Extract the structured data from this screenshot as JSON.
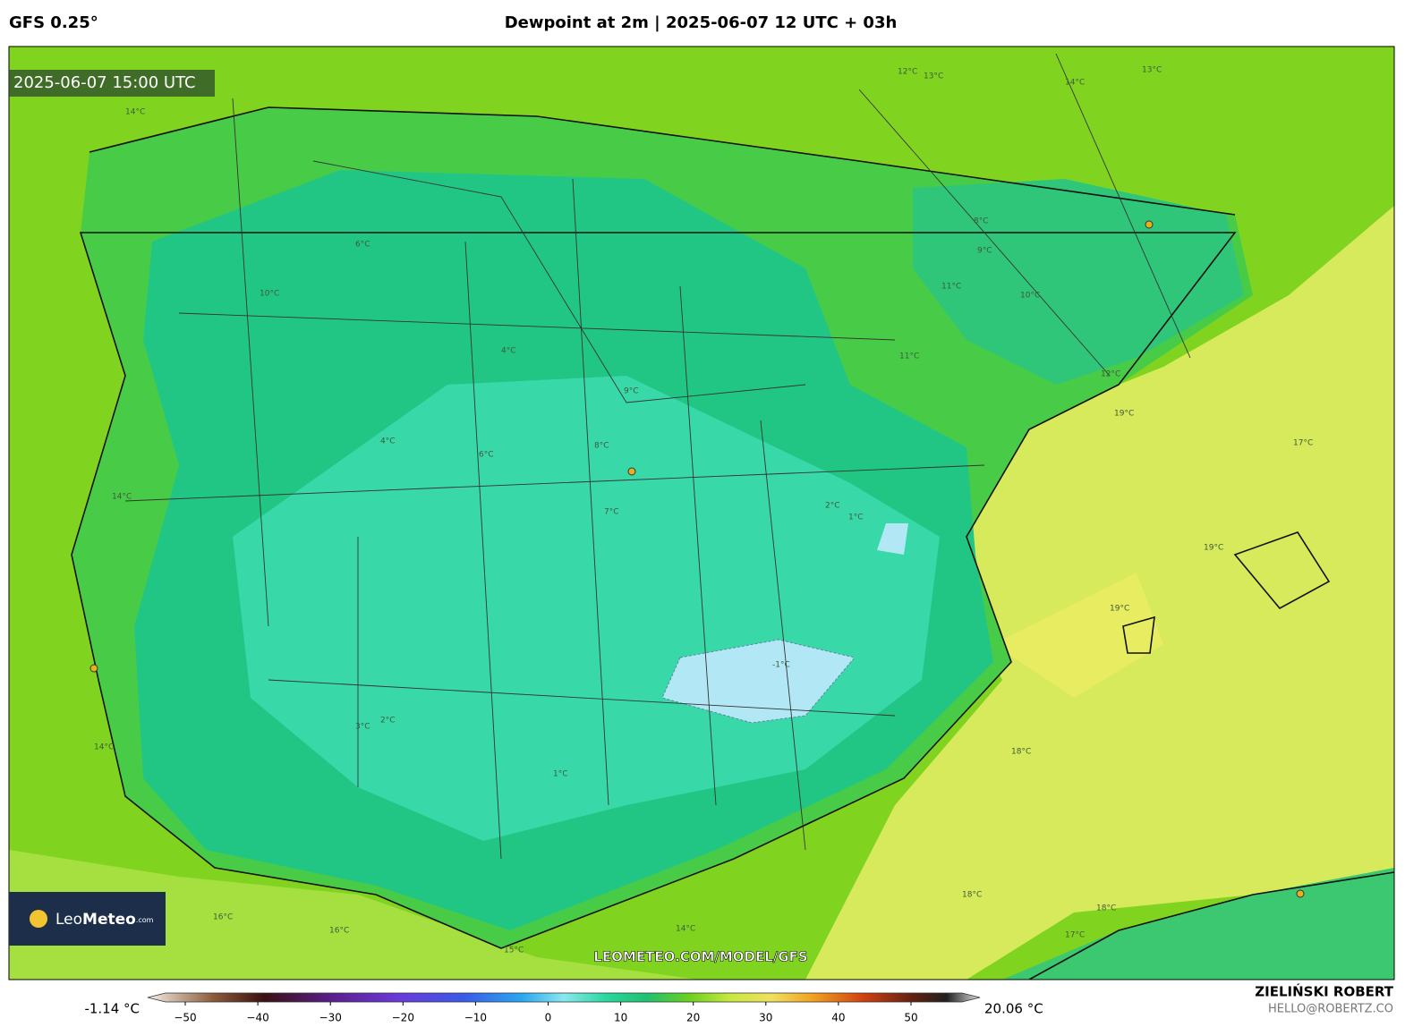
{
  "header": {
    "model": "GFS 0.25°",
    "title": "Dewpoint at 2m | 2025-06-07 12 UTC + 03h"
  },
  "map": {
    "valid_time": "2025-06-07 15:00 UTC",
    "watermark": "LEOMETEO.COM/MODEL/GFS",
    "logo": {
      "first": "Leo",
      "second": "Meteo",
      "suffix": ".com"
    },
    "contour_labels": [
      "14°C",
      "12°C",
      "13°C",
      "14°C",
      "13°C",
      "8°C",
      "9°C",
      "11°C",
      "10°C",
      "11°C",
      "12°C",
      "19°C",
      "17°C",
      "19°C",
      "19°C",
      "18°C",
      "18°C",
      "6°C",
      "10°C",
      "4°C",
      "4°C",
      "6°C",
      "7°C",
      "2°C",
      "1°C",
      "-1°C",
      "1°C",
      "2°C",
      "3°C",
      "16°C",
      "16°C",
      "14°C",
      "15°C",
      "9°C",
      "8°C",
      "14°C",
      "14°C",
      "18°C",
      "17°C"
    ]
  },
  "colorbar": {
    "min_label": "-1.14 °C",
    "max_label": "20.06 °C",
    "ticks": [
      {
        "value": -50,
        "label": "−50"
      },
      {
        "value": -40,
        "label": "−40"
      },
      {
        "value": -30,
        "label": "−30"
      },
      {
        "value": -20,
        "label": "−20"
      },
      {
        "value": -10,
        "label": "−10"
      },
      0,
      10,
      20,
      30,
      40,
      50
    ]
  },
  "credits": {
    "author": "ZIELIŃSKI ROBERT",
    "contact": "HELLO@ROBERTZ.CO"
  }
}
